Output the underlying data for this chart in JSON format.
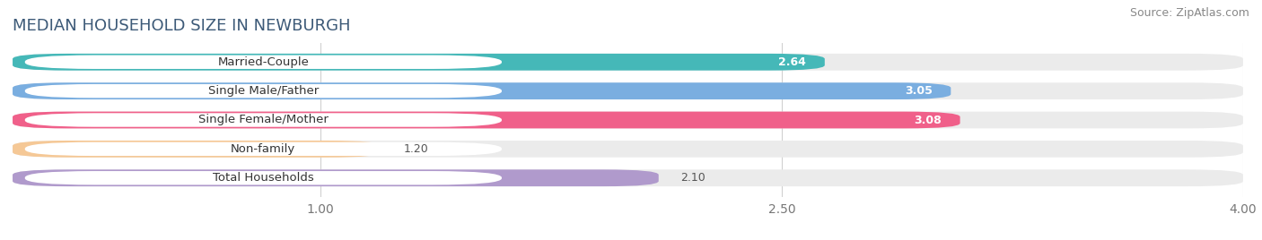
{
  "title": "MEDIAN HOUSEHOLD SIZE IN NEWBURGH",
  "source": "Source: ZipAtlas.com",
  "categories": [
    "Married-Couple",
    "Single Male/Father",
    "Single Female/Mother",
    "Non-family",
    "Total Households"
  ],
  "values": [
    2.64,
    3.05,
    3.08,
    1.2,
    2.1
  ],
  "bar_colors": [
    "#45b8b8",
    "#7aaee0",
    "#f0608a",
    "#f5c896",
    "#b09acc"
  ],
  "xlim_min": 0.0,
  "xlim_max": 4.0,
  "xticks": [
    1.0,
    2.5,
    4.0
  ],
  "background_color": "#ffffff",
  "bar_bg_color": "#ebebeb",
  "title_fontsize": 13,
  "source_fontsize": 9,
  "label_fontsize": 9.5,
  "value_fontsize": 9,
  "tick_fontsize": 10,
  "bar_height": 0.58
}
